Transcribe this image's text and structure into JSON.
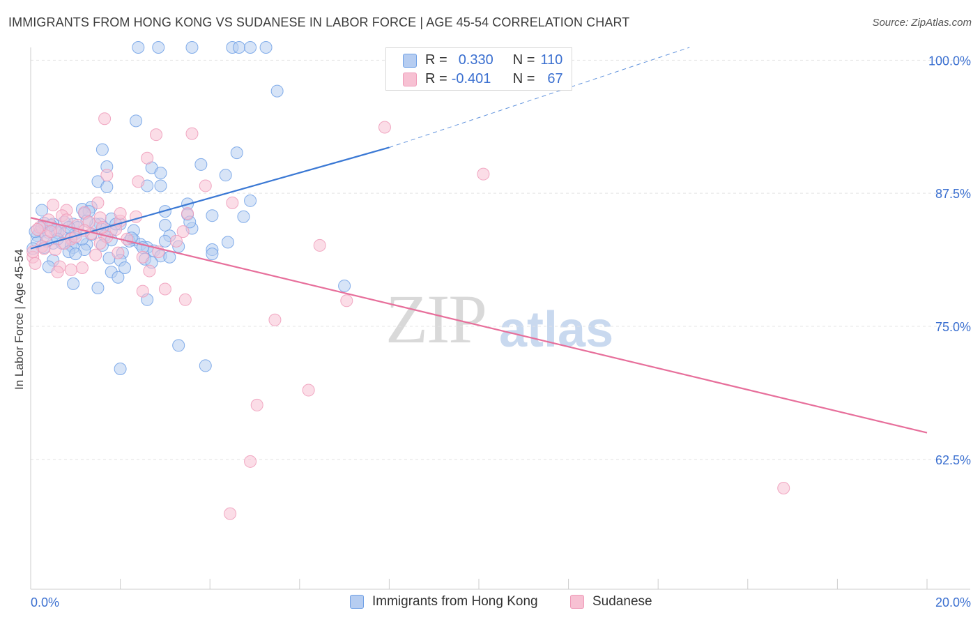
{
  "header": {
    "title": "IMMIGRANTS FROM HONG KONG VS SUDANESE IN LABOR FORCE | AGE 45-54 CORRELATION CHART",
    "source": "Source: ZipAtlas.com"
  },
  "watermark": {
    "zip": "ZIP",
    "atlas": "atlas"
  },
  "legend_box": {
    "rows": [
      {
        "r_label": "R =",
        "r_value": "0.330",
        "n_label": "N =",
        "n_value": "110",
        "color": "#6fa0e6"
      },
      {
        "r_label": "R =",
        "r_value": "-0.401",
        "n_label": "N =",
        "n_value": "67",
        "color": "#f29ab8"
      }
    ]
  },
  "colors": {
    "blue_fill": "#b6cdf1",
    "blue_stroke": "#6fa0e6",
    "blue_line": "#3a78d4",
    "pink_fill": "#f7c1d3",
    "pink_stroke": "#ef9ab8",
    "pink_line": "#e76f9b",
    "grid": "#e4e4e4",
    "tick_label": "#3a6fd0"
  },
  "chart_data": {
    "type": "scatter",
    "title": "IMMIGRANTS FROM HONG KONG VS SUDANESE IN LABOR FORCE | AGE 45-54 CORRELATION CHART",
    "xlabel": "",
    "ylabel": "In Labor Force | Age 45-54",
    "xlim": [
      0,
      20
    ],
    "ylim": [
      50,
      102
    ],
    "x_tick_labels": [
      "0.0%",
      "20.0%"
    ],
    "y_ticks": [
      62.5,
      75.0,
      87.5,
      100.0
    ],
    "y_tick_labels": [
      "62.5%",
      "75.0%",
      "87.5%",
      "100.0%"
    ],
    "grid": true,
    "legend_position": "bottom",
    "series": [
      {
        "name": "Immigrants from Hong Kong",
        "r": 0.33,
        "n": 110,
        "trend": {
          "x0": 0,
          "y0": 82.3,
          "x1": 8.0,
          "y1": 91.8,
          "dashed_to_x": 14.7,
          "dashed_to_y": 101.2
        },
        "points": [
          [
            2.4,
            101.2
          ],
          [
            2.85,
            101.2
          ],
          [
            3.6,
            101.2
          ],
          [
            4.5,
            101.2
          ],
          [
            4.65,
            101.2
          ],
          [
            4.9,
            101.2
          ],
          [
            5.25,
            101.2
          ],
          [
            5.5,
            97.1
          ],
          [
            2.35,
            94.3
          ],
          [
            1.6,
            91.6
          ],
          [
            4.6,
            91.3
          ],
          [
            3.8,
            90.2
          ],
          [
            1.7,
            90.0
          ],
          [
            2.7,
            89.9
          ],
          [
            2.9,
            89.4
          ],
          [
            4.35,
            89.2
          ],
          [
            1.5,
            88.6
          ],
          [
            2.6,
            88.2
          ],
          [
            2.9,
            88.2
          ],
          [
            1.7,
            88.1
          ],
          [
            4.9,
            86.8
          ],
          [
            3.5,
            86.5
          ],
          [
            1.35,
            86.2
          ],
          [
            1.15,
            86.0
          ],
          [
            0.25,
            85.9
          ],
          [
            1.3,
            85.8
          ],
          [
            1.2,
            85.6
          ],
          [
            3.0,
            85.8
          ],
          [
            3.5,
            85.5
          ],
          [
            4.05,
            85.4
          ],
          [
            4.75,
            85.3
          ],
          [
            1.8,
            85.1
          ],
          [
            0.3,
            84.7
          ],
          [
            0.5,
            84.6
          ],
          [
            0.95,
            84.6
          ],
          [
            1.55,
            84.6
          ],
          [
            2.0,
            84.6
          ],
          [
            3.0,
            84.5
          ],
          [
            3.6,
            84.2
          ],
          [
            1.6,
            84.1
          ],
          [
            1.8,
            84.0
          ],
          [
            2.3,
            84.0
          ],
          [
            0.2,
            83.9
          ],
          [
            0.4,
            83.8
          ],
          [
            0.6,
            83.8
          ],
          [
            0.75,
            83.7
          ],
          [
            1.0,
            83.7
          ],
          [
            1.35,
            83.6
          ],
          [
            1.65,
            83.5
          ],
          [
            0.15,
            83.5
          ],
          [
            3.1,
            83.5
          ],
          [
            0.9,
            83.3
          ],
          [
            1.8,
            83.1
          ],
          [
            2.3,
            83.1
          ],
          [
            3.0,
            83.0
          ],
          [
            4.4,
            82.9
          ],
          [
            0.15,
            82.9
          ],
          [
            0.5,
            82.8
          ],
          [
            0.7,
            82.8
          ],
          [
            0.9,
            82.6
          ],
          [
            1.25,
            82.7
          ],
          [
            2.45,
            82.7
          ],
          [
            1.6,
            82.6
          ],
          [
            3.3,
            82.5
          ],
          [
            2.6,
            82.4
          ],
          [
            0.3,
            82.4
          ],
          [
            0.95,
            82.4
          ],
          [
            1.2,
            82.2
          ],
          [
            2.75,
            82.1
          ],
          [
            4.05,
            82.2
          ],
          [
            0.85,
            82.0
          ],
          [
            2.05,
            81.9
          ],
          [
            4.05,
            81.8
          ],
          [
            1.0,
            81.8
          ],
          [
            2.9,
            81.6
          ],
          [
            3.1,
            81.5
          ],
          [
            1.75,
            81.4
          ],
          [
            2.55,
            81.3
          ],
          [
            0.5,
            81.2
          ],
          [
            2.0,
            81.2
          ],
          [
            2.7,
            81.0
          ],
          [
            0.4,
            80.6
          ],
          [
            2.1,
            80.5
          ],
          [
            1.8,
            80.1
          ],
          [
            1.95,
            79.6
          ],
          [
            0.95,
            79.0
          ],
          [
            1.5,
            78.6
          ],
          [
            7.0,
            78.8
          ],
          [
            2.6,
            77.5
          ],
          [
            3.3,
            73.2
          ],
          [
            3.9,
            71.3
          ],
          [
            2.0,
            71.0
          ],
          [
            0.1,
            83.9
          ],
          [
            0.25,
            84.3
          ],
          [
            0.55,
            84.0
          ],
          [
            1.05,
            84.3
          ],
          [
            1.45,
            84.6
          ],
          [
            2.2,
            83.0
          ],
          [
            0.35,
            83.0
          ],
          [
            0.6,
            83.2
          ],
          [
            0.75,
            84.8
          ],
          [
            1.9,
            84.6
          ],
          [
            3.55,
            84.8
          ],
          [
            2.5,
            82.4
          ],
          [
            0.05,
            82.3
          ],
          [
            1.25,
            84.9
          ],
          [
            0.85,
            84.3
          ],
          [
            2.25,
            83.3
          ],
          [
            0.45,
            84.5
          ],
          [
            1.15,
            83.2
          ]
        ]
      },
      {
        "name": "Sudanese",
        "r": -0.401,
        "n": 67,
        "trend": {
          "x0": 0,
          "y0": 85.2,
          "x1": 20.0,
          "y1": 65.0
        },
        "points": [
          [
            1.65,
            94.5
          ],
          [
            7.9,
            93.7
          ],
          [
            2.8,
            93.0
          ],
          [
            3.6,
            93.1
          ],
          [
            2.6,
            90.8
          ],
          [
            10.1,
            89.3
          ],
          [
            1.7,
            89.2
          ],
          [
            2.4,
            88.6
          ],
          [
            3.9,
            88.2
          ],
          [
            1.5,
            86.6
          ],
          [
            0.5,
            86.4
          ],
          [
            4.5,
            86.6
          ],
          [
            0.8,
            85.9
          ],
          [
            1.2,
            85.7
          ],
          [
            3.5,
            85.6
          ],
          [
            0.7,
            85.4
          ],
          [
            2.35,
            85.3
          ],
          [
            1.55,
            85.2
          ],
          [
            0.4,
            85.0
          ],
          [
            1.3,
            84.8
          ],
          [
            2.0,
            84.9
          ],
          [
            1.05,
            84.5
          ],
          [
            0.2,
            84.3
          ],
          [
            1.9,
            84.1
          ],
          [
            0.65,
            84.0
          ],
          [
            3.4,
            83.9
          ],
          [
            0.35,
            83.5
          ],
          [
            1.7,
            83.4
          ],
          [
            2.15,
            83.2
          ],
          [
            0.9,
            83.2
          ],
          [
            3.25,
            83.0
          ],
          [
            1.55,
            82.8
          ],
          [
            6.45,
            82.6
          ],
          [
            0.25,
            82.5
          ],
          [
            0.55,
            82.2
          ],
          [
            1.95,
            81.9
          ],
          [
            1.45,
            81.7
          ],
          [
            0.05,
            81.5
          ],
          [
            2.5,
            81.5
          ],
          [
            0.65,
            80.6
          ],
          [
            1.15,
            80.5
          ],
          [
            0.9,
            80.3
          ],
          [
            0.6,
            80.1
          ],
          [
            2.65,
            80.2
          ],
          [
            0.1,
            80.9
          ],
          [
            2.5,
            78.3
          ],
          [
            3.0,
            78.5
          ],
          [
            3.45,
            77.5
          ],
          [
            7.05,
            77.4
          ],
          [
            5.45,
            75.6
          ],
          [
            6.2,
            69.0
          ],
          [
            5.05,
            67.6
          ],
          [
            4.9,
            62.3
          ],
          [
            4.45,
            57.4
          ],
          [
            16.8,
            59.8
          ],
          [
            0.45,
            83.9
          ],
          [
            1.35,
            83.7
          ],
          [
            0.8,
            85.0
          ],
          [
            2.0,
            85.6
          ],
          [
            0.3,
            82.3
          ],
          [
            1.0,
            83.4
          ],
          [
            0.15,
            84.1
          ],
          [
            0.75,
            82.8
          ],
          [
            1.6,
            84.3
          ],
          [
            0.05,
            82.0
          ],
          [
            1.2,
            84.0
          ],
          [
            2.85,
            82.0
          ]
        ]
      }
    ]
  }
}
